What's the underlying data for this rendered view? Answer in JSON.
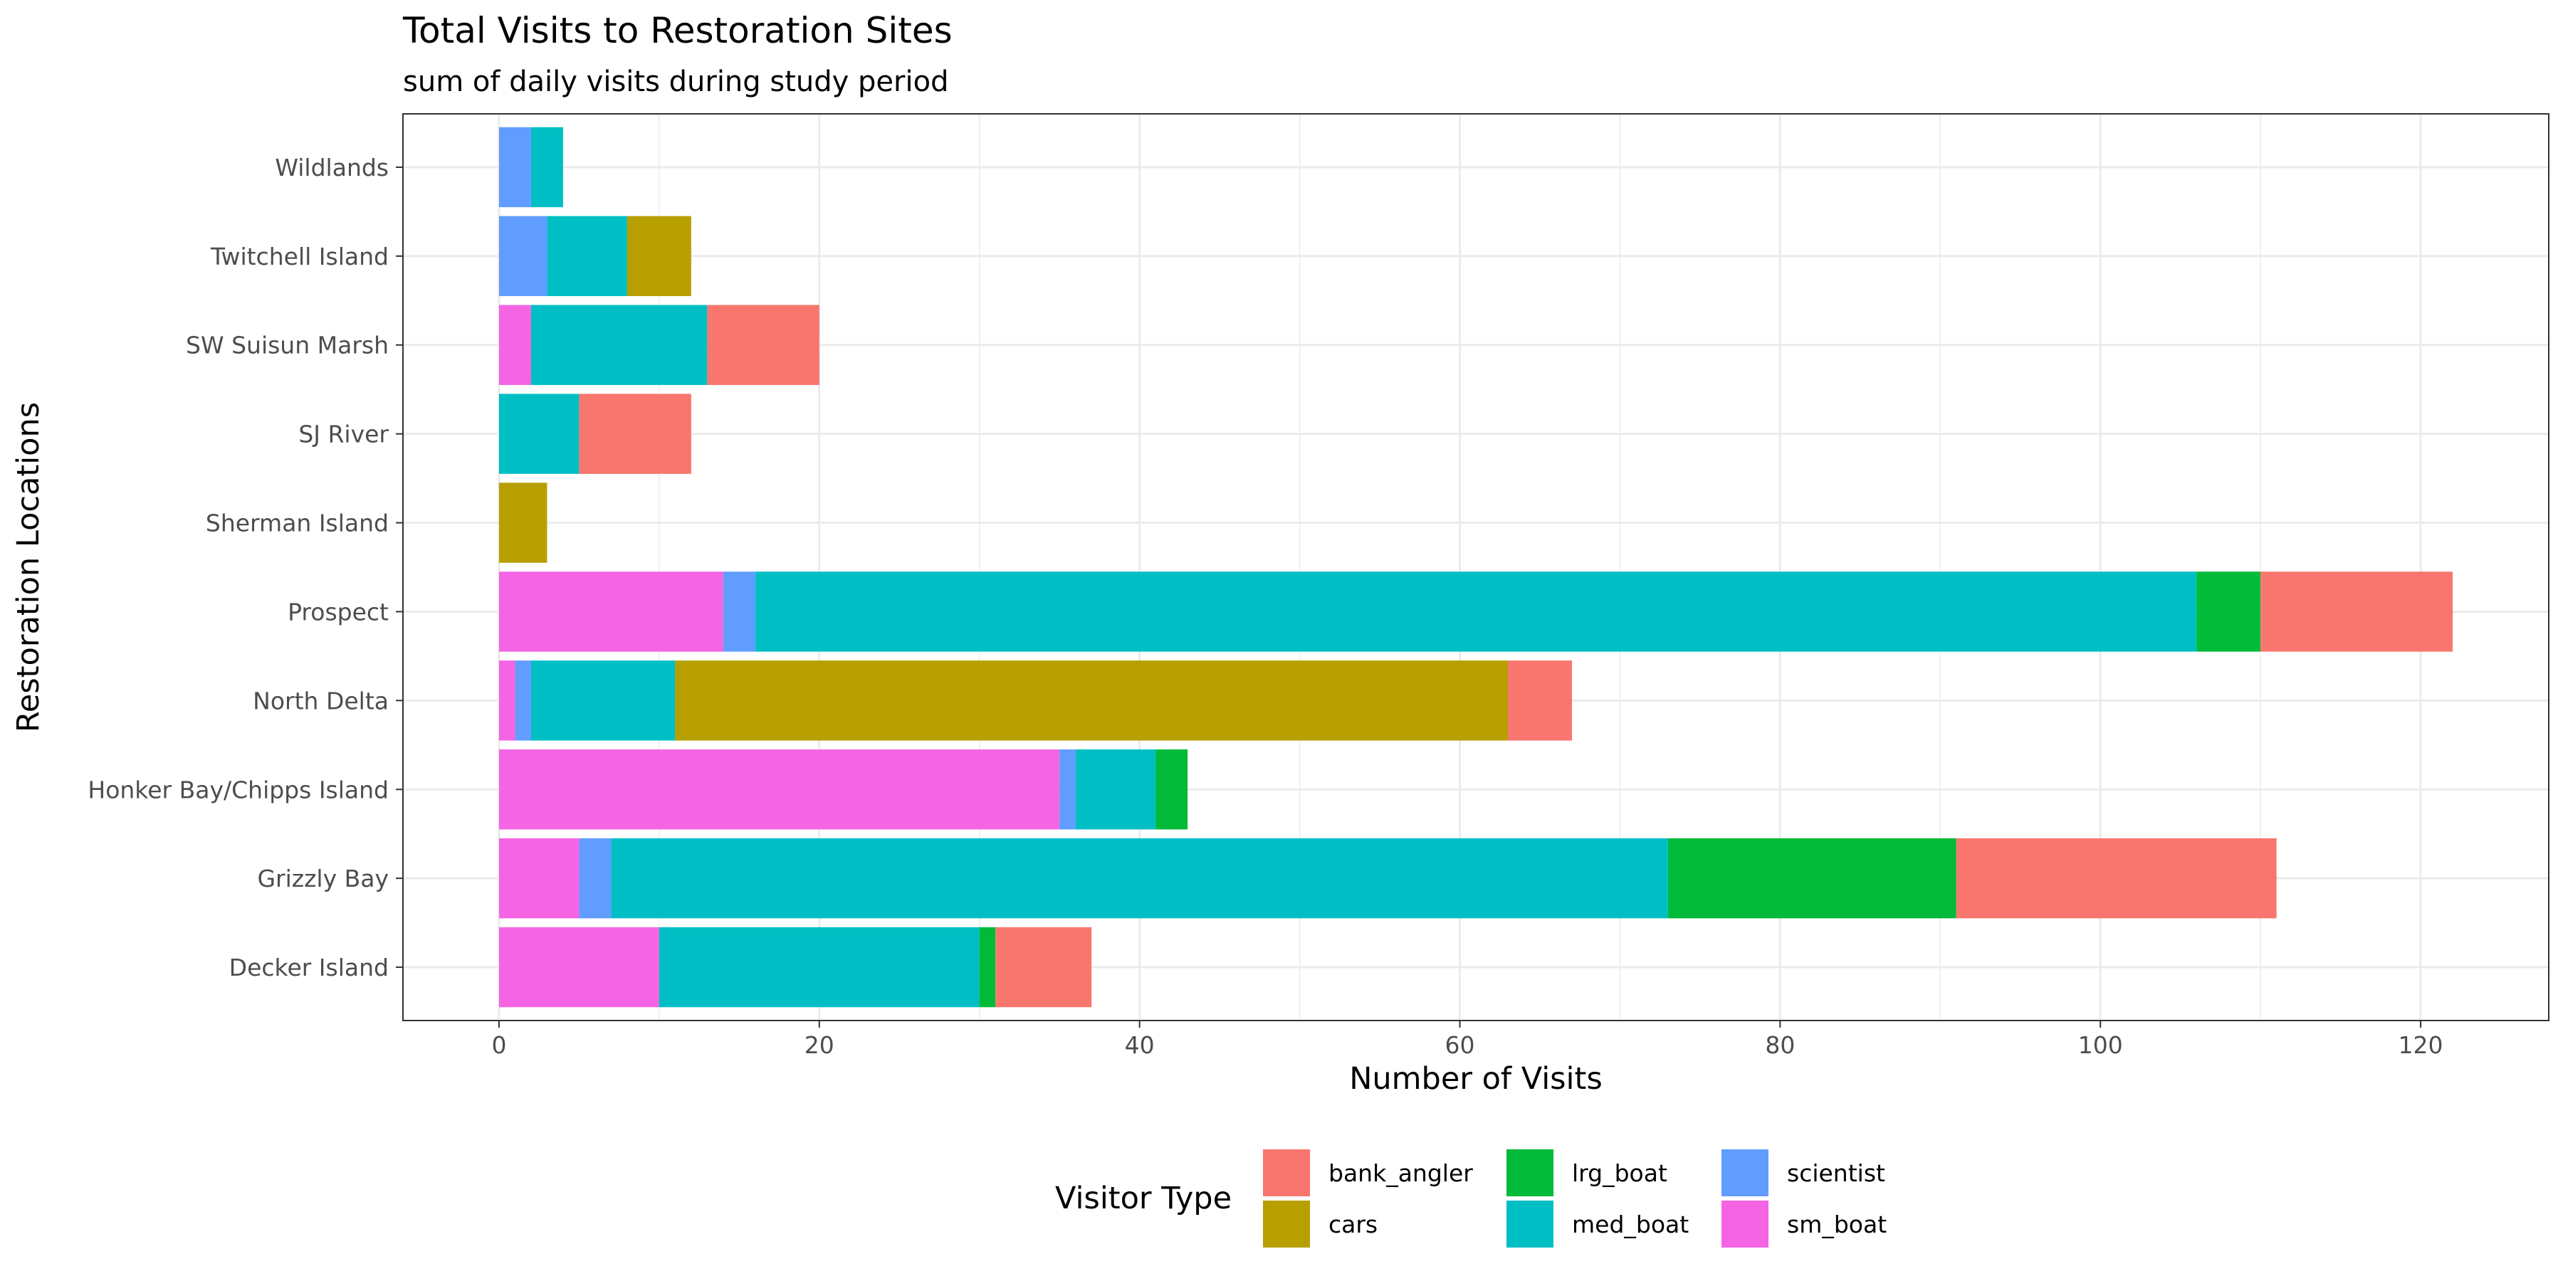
{
  "chart_data": {
    "type": "bar",
    "orientation": "horizontal",
    "stacked": true,
    "title": "Total Visits to Restoration Sites",
    "subtitle": "sum of daily visits during study period",
    "xlabel": "Number of Visits",
    "ylabel": "Restoration Locations",
    "xlim": [
      -6,
      128
    ],
    "xticks": [
      0,
      20,
      40,
      60,
      80,
      100,
      120
    ],
    "grid": true,
    "legend_position": "bottom",
    "legend_title": "Visitor Type",
    "categories": [
      "Decker Island",
      "Grizzly Bay",
      "Honker Bay/Chipps Island",
      "North Delta",
      "Prospect",
      "Sherman Island",
      "SJ River",
      "SW Suisun Marsh",
      "Twitchell Island",
      "Wildlands"
    ],
    "stack_order": [
      "sm_boat",
      "scientist",
      "med_boat",
      "cars",
      "lrg_boat",
      "bank_angler"
    ],
    "legend_order": [
      "bank_angler",
      "cars",
      "lrg_boat",
      "med_boat",
      "scientist",
      "sm_boat"
    ],
    "series": [
      {
        "name": "bank_angler",
        "color": "#F8766D",
        "values": [
          6,
          20,
          0,
          4,
          12,
          0,
          7,
          7,
          0,
          0
        ]
      },
      {
        "name": "cars",
        "color": "#B79F00",
        "values": [
          0,
          0,
          0,
          52,
          0,
          3,
          0,
          0,
          4,
          0
        ]
      },
      {
        "name": "lrg_boat",
        "color": "#00BA38",
        "values": [
          1,
          18,
          2,
          0,
          4,
          0,
          0,
          0,
          0,
          0
        ]
      },
      {
        "name": "med_boat",
        "color": "#00BFC4",
        "values": [
          20,
          66,
          5,
          9,
          90,
          0,
          5,
          11,
          5,
          2
        ]
      },
      {
        "name": "scientist",
        "color": "#619CFF",
        "values": [
          0,
          2,
          1,
          1,
          2,
          0,
          0,
          0,
          3,
          2
        ]
      },
      {
        "name": "sm_boat",
        "color": "#F564E3",
        "values": [
          10,
          5,
          35,
          1,
          14,
          0,
          0,
          2,
          0,
          0
        ]
      }
    ]
  }
}
